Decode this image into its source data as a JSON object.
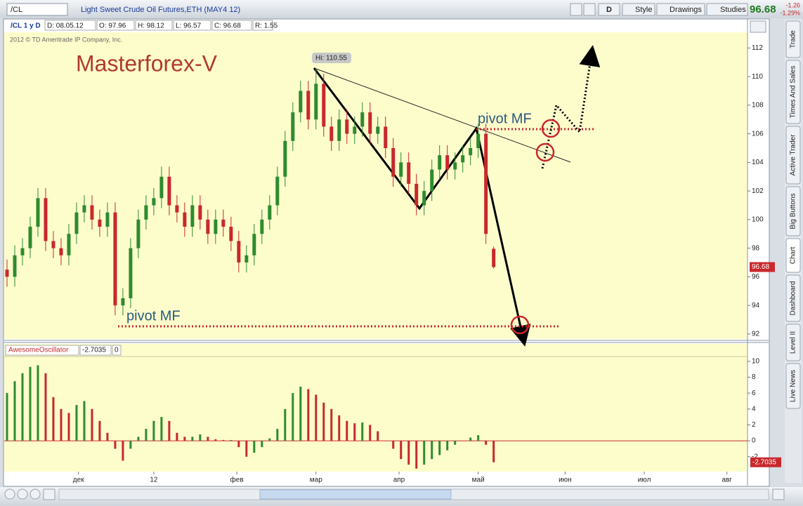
{
  "toolbar": {
    "symbol": "/CL",
    "title": "Light Sweet Crude Oil Futures,ETH (MAY4 12)",
    "period_button": "D",
    "buttons": [
      "Style",
      "Drawings",
      "Studies"
    ],
    "last_price": "96.68",
    "change": "-1.26",
    "change_pct": "-1.29%"
  },
  "info_bar": [
    "/CL 1 y D",
    "D: 08.05.12",
    "O: 97.96",
    "H: 98.12",
    "L: 96.57",
    "C: 96.68",
    "R: 1.55"
  ],
  "copyright": "2012 © TD Ameritrade IP Company, Inc.",
  "watermark": "Masterforex-V",
  "annotations": {
    "high_label": "Hi: 110.55",
    "pivot_upper": "pivot MF",
    "pivot_lower": "pivot MF"
  },
  "chart": {
    "type": "candlestick",
    "up_color": "#2e8b2e",
    "down_color": "#c8282d",
    "xlim": [
      0,
      191
    ],
    "xticks": [
      {
        "value": 18.5,
        "label": "дек"
      },
      {
        "value": 38,
        "label": "12"
      },
      {
        "value": 59.5,
        "label": "фев"
      },
      {
        "value": 80,
        "label": "мар"
      },
      {
        "value": 101.5,
        "label": "апр"
      },
      {
        "value": 122,
        "label": "май"
      },
      {
        "value": 144.5,
        "label": "июн"
      },
      {
        "value": 165,
        "label": "июл"
      },
      {
        "value": 186.4,
        "label": "авг"
      }
    ],
    "ylim": [
      91.7,
      113
    ],
    "yticks": [
      92,
      94,
      96,
      98,
      100,
      102,
      104,
      106,
      108,
      110,
      112
    ],
    "candles": {
      "x": [
        0,
        2,
        4,
        6,
        8,
        10,
        12,
        14,
        16,
        18,
        20,
        22,
        24,
        26,
        28,
        30,
        32,
        34,
        36,
        38,
        40,
        42,
        44,
        46,
        48,
        50,
        52,
        54,
        56,
        58,
        60,
        62,
        64,
        66,
        68,
        70,
        72,
        74,
        76,
        78,
        80,
        82,
        84,
        86,
        88,
        90,
        92,
        94,
        96,
        98,
        100,
        102,
        104,
        106,
        108,
        110,
        112,
        114,
        116,
        118,
        120,
        122,
        124,
        126
      ],
      "open": [
        96.5,
        96,
        97.5,
        98,
        99.5,
        101.5,
        98.5,
        98,
        97.5,
        99,
        100.5,
        101,
        100,
        99.5,
        100.5,
        94,
        94.5,
        98,
        100,
        101,
        101.5,
        103,
        101,
        100.5,
        99.5,
        101,
        100,
        99,
        100,
        99.5,
        98.5,
        97,
        97.5,
        99,
        100,
        101,
        103,
        105.5,
        107.5,
        109,
        107,
        109.5,
        106.5,
        105.5,
        107,
        106,
        106.5,
        107.5,
        106,
        106.5,
        105,
        103,
        104,
        102.5,
        101,
        102,
        103.5,
        104.5,
        103.5,
        104,
        104.5,
        105,
        106,
        97.96
      ],
      "high": [
        97.2,
        98.2,
        98.7,
        100.2,
        102.2,
        102.2,
        99.2,
        98.7,
        99.7,
        101.2,
        101.7,
        101.7,
        100.7,
        101.2,
        101.2,
        95.2,
        98.7,
        100.7,
        101.7,
        102.2,
        103.7,
        103.7,
        101.7,
        101.2,
        101.7,
        101.7,
        100.7,
        100.7,
        100.7,
        100.2,
        99.2,
        98.2,
        99.7,
        100.7,
        101.7,
        103.7,
        106.2,
        108.2,
        109.7,
        109.7,
        110.55,
        110.2,
        107.2,
        107.7,
        107.7,
        107.2,
        108.2,
        108.2,
        107.2,
        107.2,
        105.7,
        104.7,
        104.7,
        103.2,
        102.7,
        104.2,
        105.2,
        105.2,
        104.7,
        105.2,
        105.7,
        106.7,
        106.7,
        98.12
      ],
      "low": [
        95.3,
        95.3,
        96.8,
        97.3,
        98.8,
        97.8,
        97.3,
        96.8,
        96.8,
        98.3,
        99.8,
        99.3,
        98.8,
        98.8,
        93.3,
        93.3,
        93.8,
        97.3,
        99.3,
        100.3,
        100.8,
        100.3,
        99.8,
        98.8,
        98.8,
        99.3,
        98.3,
        98.3,
        98.8,
        97.8,
        96.3,
        96.3,
        96.8,
        98.3,
        99.3,
        100.3,
        102.3,
        104.8,
        106.8,
        106.3,
        106.3,
        105.8,
        104.8,
        104.8,
        105.3,
        105.3,
        105.8,
        105.3,
        105.3,
        104.3,
        102.3,
        102.3,
        101.8,
        100.3,
        100.3,
        101.3,
        102.8,
        102.8,
        102.8,
        103.3,
        103.8,
        104.3,
        98.3,
        96.57
      ],
      "close": [
        96,
        97.5,
        98,
        99.5,
        101.5,
        98.5,
        98,
        97.5,
        99,
        100.5,
        101,
        100,
        99.5,
        100.5,
        94,
        94.5,
        98,
        100,
        101,
        101.5,
        103,
        101,
        100.5,
        99.5,
        101,
        100,
        99,
        100,
        99.5,
        98.5,
        97,
        97.5,
        99,
        100,
        101,
        103,
        105.5,
        107.5,
        109,
        107,
        109.5,
        106.5,
        105.5,
        107,
        106,
        106.5,
        107.5,
        106,
        106.5,
        105,
        103,
        104,
        102.5,
        101,
        102,
        103.5,
        104.5,
        103.5,
        104,
        104.5,
        105,
        106,
        99,
        96.68
      ]
    }
  },
  "oscillator": {
    "type": "bar",
    "legend_fields": [
      "AwesomeOscillator",
      "-2.7035",
      "0"
    ],
    "up_color": "#2e8b2e",
    "down_color": "#c8282d",
    "zero_color": "#c8282d",
    "ylim": [
      -3.7,
      10.6
    ],
    "yticks": [
      -2,
      0,
      2,
      4,
      6,
      8,
      10
    ],
    "values": [
      6,
      7.5,
      8.5,
      9.3,
      9.5,
      8.5,
      5.5,
      4,
      3.5,
      4.5,
      5,
      4,
      2.5,
      1,
      -1,
      -2.5,
      -1,
      0.5,
      1.5,
      2.5,
      3,
      2.5,
      1,
      0.5,
      0.5,
      0.8,
      0.5,
      0.2,
      0.1,
      0.1,
      -0.8,
      -2,
      -1.5,
      -0.8,
      0.3,
      1.5,
      4,
      6,
      6.8,
      6.5,
      5.8,
      4.8,
      4,
      3.2,
      2.5,
      2.2,
      2.3,
      2,
      1.2,
      0,
      -1,
      -2.3,
      -3,
      -3.5,
      -3,
      -2.3,
      -1.8,
      -1.2,
      -0.5,
      0,
      0.4,
      0.7,
      -0.5,
      -2.7035
    ]
  },
  "side_tabs": [
    "Trade",
    "Times And Sales",
    "Active Trader",
    "Big Buttons",
    "Chart",
    "Dashboard",
    "Level II",
    "Live News"
  ]
}
